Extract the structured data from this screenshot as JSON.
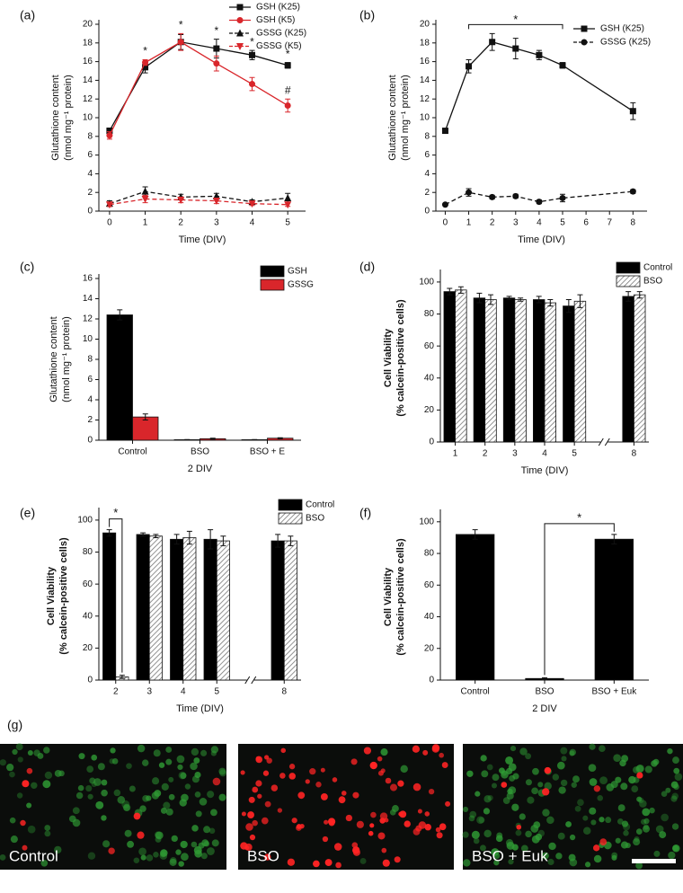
{
  "chart_data": [
    {
      "type": "line",
      "label": "(a)",
      "ylabel": [
        "Glutathione content",
        "(nmol mg⁻¹ protein)"
      ],
      "xlabel": "Time (DIV)",
      "x": [
        0,
        1,
        2,
        3,
        4,
        5
      ],
      "xlim": [
        -0.3,
        5.5
      ],
      "xticks": [
        0,
        1,
        2,
        3,
        4,
        5
      ],
      "ylim": [
        0,
        20
      ],
      "yticks": [
        0,
        2,
        4,
        6,
        8,
        10,
        12,
        14,
        16,
        18,
        20
      ],
      "legend": "upper right",
      "series": [
        {
          "name": "GSH (K25)",
          "color": "#111111",
          "marker": "square",
          "values": [
            8.6,
            15.4,
            18.1,
            17.4,
            16.7,
            15.6
          ],
          "errors": [
            0.3,
            0.6,
            0.8,
            1.0,
            0.5,
            0.3
          ]
        },
        {
          "name": "GSH (K5)",
          "color": "#d9262b",
          "marker": "circle",
          "values": [
            8.1,
            15.9,
            18.1,
            15.8,
            13.6,
            11.3
          ],
          "errors": [
            0.4,
            0.3,
            0.9,
            0.8,
            0.7,
            0.7
          ]
        },
        {
          "name": "GSSG (K25)",
          "color": "#111111",
          "marker": "triangle",
          "dash": true,
          "values": [
            0.8,
            2.1,
            1.5,
            1.6,
            1.0,
            1.4
          ],
          "errors": [
            0.3,
            0.5,
            0.3,
            0.3,
            0.2,
            0.5
          ]
        },
        {
          "name": "GSSG (K5)",
          "color": "#d9262b",
          "marker": "triangle-down",
          "dash": true,
          "values": [
            0.7,
            1.3,
            1.2,
            1.1,
            0.8,
            0.7
          ],
          "errors": [
            0.2,
            0.4,
            0.3,
            0.3,
            0.2,
            0.2
          ]
        }
      ],
      "annotations": [
        {
          "text": "*",
          "x": 1
        },
        {
          "text": "*",
          "x": 2
        },
        {
          "text": "*",
          "x": 3
        },
        {
          "text": "*",
          "x": 4
        },
        {
          "text": "*",
          "x": 5
        },
        {
          "text": "#",
          "x": 5,
          "series": "GSH (K5)"
        }
      ]
    },
    {
      "type": "line",
      "label": "(b)",
      "ylabel": [
        "Glutathione content",
        "(nmol mg⁻¹ protein)"
      ],
      "xlabel": "Time (DIV)",
      "x": [
        0,
        1,
        2,
        3,
        4,
        5,
        8
      ],
      "xlim": [
        -0.4,
        8.6
      ],
      "xticks": [
        0,
        1,
        2,
        3,
        4,
        5,
        6,
        7,
        8
      ],
      "ylim": [
        0,
        20
      ],
      "yticks": [
        0,
        2,
        4,
        6,
        8,
        10,
        12,
        14,
        16,
        18,
        20
      ],
      "legend": "upper right",
      "series": [
        {
          "name": "GSH (K25)",
          "color": "#111111",
          "marker": "square",
          "values": [
            8.6,
            15.5,
            18.1,
            17.4,
            16.7,
            15.6,
            10.7
          ],
          "errors": [
            0.2,
            0.7,
            0.9,
            1.1,
            0.5,
            0.3,
            0.9
          ]
        },
        {
          "name": "GSSG (K25)",
          "color": "#111111",
          "marker": "circle",
          "dash": true,
          "values": [
            0.7,
            2.0,
            1.5,
            1.6,
            1.0,
            1.4,
            2.1
          ],
          "errors": [
            0.1,
            0.4,
            0.2,
            0.2,
            0.2,
            0.4,
            0.2
          ]
        }
      ],
      "annotations": [
        {
          "text": "*",
          "from": 1,
          "to": 5
        }
      ]
    },
    {
      "type": "bar",
      "label": "(c)",
      "ylabel": [
        "Glutathione content",
        "(nmol mg⁻¹ protein)"
      ],
      "xlabel": "2 DIV",
      "categories": [
        "Control",
        "BSO",
        "BSO + E"
      ],
      "ylim": [
        0,
        16
      ],
      "yticks": [
        0,
        2,
        4,
        6,
        8,
        10,
        12,
        14,
        16
      ],
      "legend": "upper right",
      "series": [
        {
          "name": "GSH",
          "color": "#000000",
          "values": [
            12.4,
            0.05,
            0.05
          ],
          "errors": [
            0.5,
            0.02,
            0.02
          ]
        },
        {
          "name": "GSSG",
          "color": "#d9262b",
          "values": [
            2.3,
            0.15,
            0.2
          ],
          "errors": [
            0.3,
            0.05,
            0.05
          ]
        }
      ]
    },
    {
      "type": "bar",
      "label": "(d)",
      "ylabel": [
        "Cell Viability",
        "(% calcein-positive cells)"
      ],
      "xlabel": "Time (DIV)",
      "categories": [
        "1",
        "2",
        "3",
        "4",
        "5",
        "8"
      ],
      "axis_break": true,
      "ylim": [
        0,
        105
      ],
      "yticks": [
        0,
        20,
        40,
        60,
        80,
        100
      ],
      "legend": "upper right",
      "series": [
        {
          "name": "Control",
          "color": "#000000",
          "values": [
            94,
            90,
            90,
            89,
            85,
            91
          ],
          "errors": [
            2,
            3,
            1,
            2,
            4,
            3
          ]
        },
        {
          "name": "BSO",
          "color": "#777777",
          "hatch": true,
          "values": [
            95,
            89,
            89,
            87,
            88,
            92
          ],
          "errors": [
            2,
            3,
            1,
            2,
            4,
            2
          ]
        }
      ]
    },
    {
      "type": "bar",
      "label": "(e)",
      "ylabel": [
        "Cell Viability",
        "(% calcein-positive cells)"
      ],
      "xlabel": "Time (DIV)",
      "categories": [
        "2",
        "3",
        "4",
        "5",
        "8"
      ],
      "axis_break": true,
      "ylim": [
        0,
        105
      ],
      "yticks": [
        0,
        20,
        40,
        60,
        80,
        100
      ],
      "legend": "upper right",
      "series": [
        {
          "name": "Control",
          "color": "#000000",
          "values": [
            92,
            91,
            88,
            88,
            87
          ],
          "errors": [
            2,
            1,
            3,
            6,
            4
          ]
        },
        {
          "name": "BSO",
          "color": "#777777",
          "hatch": true,
          "values": [
            2,
            90,
            89,
            87,
            87
          ],
          "errors": [
            1,
            1,
            4,
            3,
            3
          ]
        }
      ],
      "annotations": [
        {
          "text": "*",
          "category": "2"
        }
      ]
    },
    {
      "type": "bar",
      "label": "(f)",
      "ylabel": [
        "Cell Viability",
        "(% calcein-positive cells)"
      ],
      "xlabel": "2 DIV",
      "categories": [
        "Control",
        "BSO",
        "BSO + Euk"
      ],
      "ylim": [
        0,
        105
      ],
      "yticks": [
        0,
        20,
        40,
        60,
        80,
        100
      ],
      "series": [
        {
          "color": "#000000",
          "values": [
            92,
            1,
            89
          ],
          "errors": [
            3,
            0.5,
            3
          ]
        }
      ],
      "annotations": [
        {
          "text": "*",
          "from": "BSO",
          "to": "BSO + Euk"
        }
      ]
    }
  ],
  "micrographs": {
    "label": "(g)",
    "panels": [
      "Control",
      "BSO",
      "BSO + Euk"
    ]
  }
}
